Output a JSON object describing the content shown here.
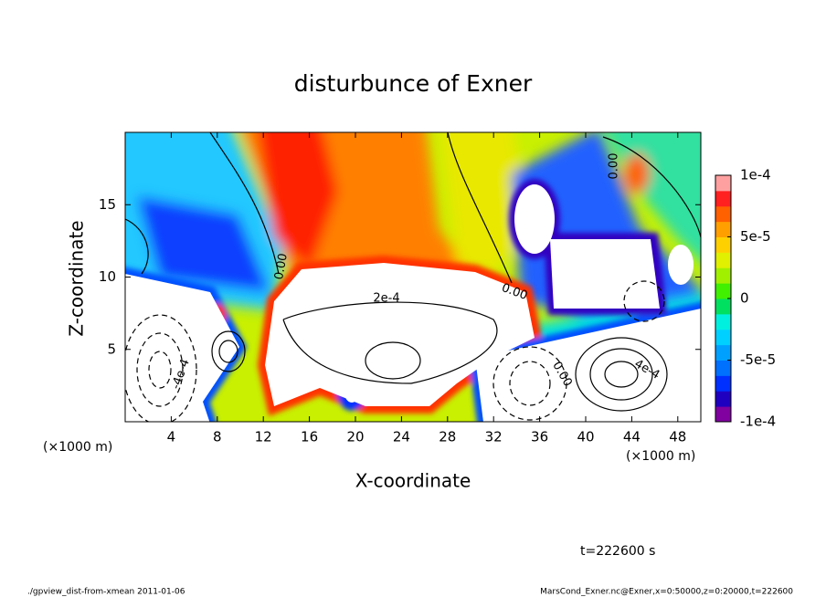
{
  "chart_data": {
    "type": "contour",
    "title": "disturbunce of Exner",
    "x_label": "X-coordinate",
    "y_label": "Z-coordinate",
    "x_unit": "(×1000 m)",
    "y_unit": "(×1000 m)",
    "xlim": [
      0,
      50
    ],
    "xticks": [
      4,
      8,
      12,
      16,
      20,
      24,
      28,
      32,
      36,
      40,
      44,
      48
    ],
    "ylim": [
      0,
      20
    ],
    "yticks": [
      5,
      10,
      15
    ],
    "colorbar": {
      "colors": [
        "#8000a0",
        "#2000c0",
        "#0030ff",
        "#0070ff",
        "#00a0ff",
        "#00d0ff",
        "#00f0e0",
        "#00e060",
        "#40f000",
        "#a0f000",
        "#e0f000",
        "#ffd000",
        "#ffa000",
        "#ff6000",
        "#ff2020",
        "#ffa0a0"
      ],
      "clim": [
        -0.0001,
        0.0001
      ],
      "ticks": [
        {
          "value": 0.0001,
          "label": "1e-4"
        },
        {
          "value": 5e-05,
          "label": "5e-5"
        },
        0,
        {
          "value": -5e-05,
          "label": "-5e-5"
        },
        {
          "value": -0.0001,
          "label": "-1e-4"
        }
      ]
    },
    "contour_labels": [
      "0.00",
      "0.00",
      "0.00",
      "0.00",
      "2e-4",
      "4e-4",
      "-4e-4"
    ],
    "time_label": "t=222600 s",
    "footer_left": "./gpview_dist-from-xmean  2011-01-06",
    "footer_right": "MarsCond_Exner.nc@Exner,x=0:50000,z=0:20000,t=222600"
  }
}
